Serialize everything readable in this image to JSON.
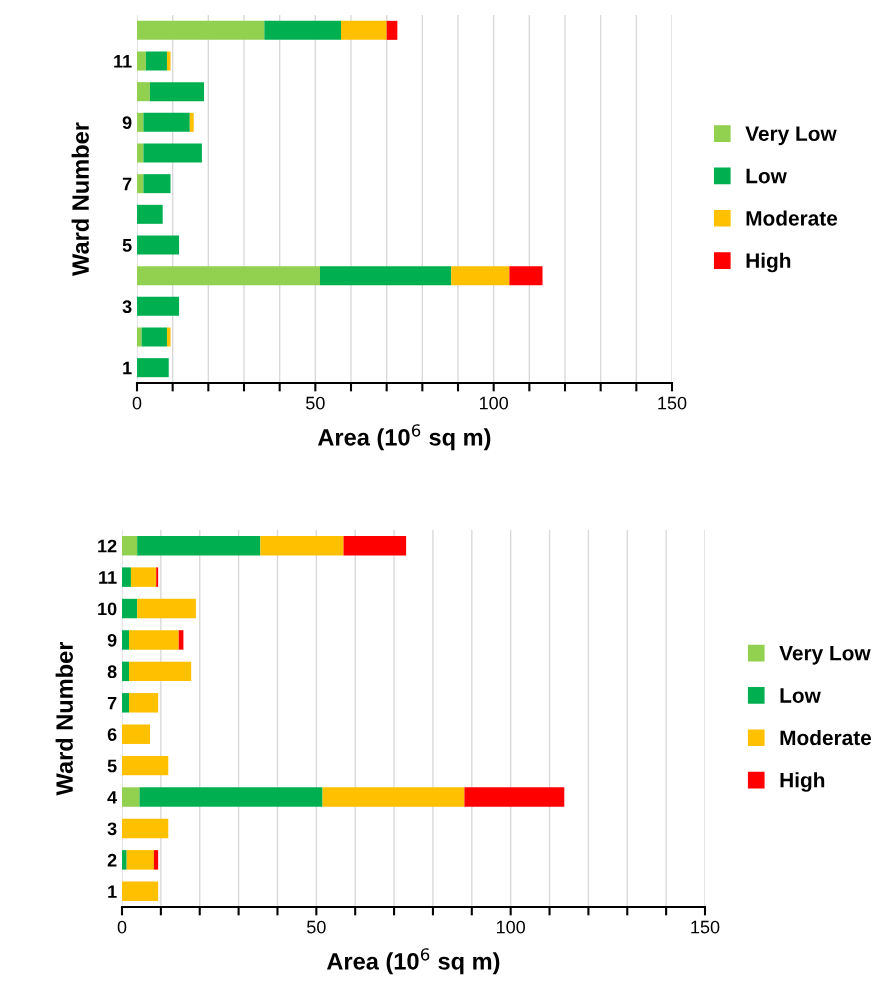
{
  "chart_data": [
    {
      "type": "bar",
      "orientation": "horizontal",
      "stacked": true,
      "xlabel": "Area (10$^{6}$ sq m)",
      "ylabel": "Ward Number",
      "categories": [
        null,
        "11",
        null,
        "9",
        null,
        "7",
        null,
        "5",
        null,
        "3",
        null,
        "1"
      ],
      "series": [
        {
          "name": "Very Low",
          "color": "#92d050",
          "values": [
            35.7,
            2.5,
            3.6,
            1.8,
            1.8,
            1.8,
            0,
            0,
            51.3,
            0,
            1.3,
            0
          ]
        },
        {
          "name": "Low",
          "color": "#00b050",
          "values": [
            21.5,
            5.9,
            15.2,
            13.0,
            16.4,
            7.6,
            7.2,
            11.8,
            36.8,
            11.8,
            7.1,
            8.9
          ]
        },
        {
          "name": "Moderate",
          "color": "#ffc000",
          "values": [
            12.8,
            1.0,
            0,
            1.1,
            0,
            0,
            0,
            0,
            16.3,
            0,
            1.0,
            0
          ]
        },
        {
          "name": "High",
          "color": "#ff0000",
          "values": [
            3.0,
            0,
            0,
            0,
            0,
            0,
            0,
            0,
            9.3,
            0,
            0,
            0
          ]
        }
      ],
      "xlim": [
        0,
        150
      ],
      "xticks": [
        0,
        {
          "value": 10,
          "label": null
        },
        {
          "value": 20,
          "label": null
        },
        {
          "value": 30,
          "label": null
        },
        {
          "value": 40,
          "label": null
        },
        50,
        {
          "value": 60,
          "label": null
        },
        {
          "value": 70,
          "label": null
        },
        {
          "value": 80,
          "label": null
        },
        {
          "value": 90,
          "label": null
        },
        100,
        {
          "value": 110,
          "label": null
        },
        {
          "value": 120,
          "label": null
        },
        {
          "value": 130,
          "label": null
        },
        {
          "value": 140,
          "label": null
        },
        150
      ],
      "grid": "x",
      "legend": "right"
    },
    {
      "type": "bar",
      "orientation": "horizontal",
      "stacked": true,
      "xlabel": "Area (10$^{6}$ sq m)",
      "ylabel": "Ward Number",
      "categories": [
        "12",
        "11",
        "10",
        "9",
        "8",
        "7",
        "6",
        "5",
        "4",
        "3",
        "2",
        "1"
      ],
      "series": [
        {
          "name": "Very Low",
          "color": "#92d050",
          "values": [
            3.9,
            0,
            0,
            0,
            0,
            0,
            0,
            0,
            4.5,
            0,
            0,
            0
          ]
        },
        {
          "name": "Low",
          "color": "#00b050",
          "values": [
            31.7,
            2.3,
            3.9,
            1.8,
            1.8,
            1.8,
            0,
            0,
            47.1,
            0,
            1.2,
            0
          ]
        },
        {
          "name": "Moderate",
          "color": "#ffc000",
          "values": [
            21.4,
            6.5,
            15.1,
            12.8,
            16.0,
            7.5,
            7.2,
            11.9,
            36.5,
            11.9,
            7.0,
            9.3
          ]
        },
        {
          "name": "High",
          "color": "#ff0000",
          "values": [
            16.1,
            0.5,
            0,
            1.2,
            0,
            0,
            0,
            0,
            25.7,
            0,
            1.1,
            0
          ]
        }
      ],
      "xlim": [
        0,
        150
      ],
      "xticks": [
        0,
        {
          "value": 10,
          "label": null
        },
        {
          "value": 20,
          "label": null
        },
        {
          "value": 30,
          "label": null
        },
        {
          "value": 40,
          "label": null
        },
        50,
        {
          "value": 60,
          "label": null
        },
        {
          "value": 70,
          "label": null
        },
        {
          "value": 80,
          "label": null
        },
        {
          "value": 90,
          "label": null
        },
        100,
        {
          "value": 110,
          "label": null
        },
        {
          "value": 120,
          "label": null
        },
        {
          "value": 130,
          "label": null
        },
        {
          "value": 140,
          "label": null
        },
        150
      ],
      "grid": "x",
      "legend": "right"
    }
  ]
}
